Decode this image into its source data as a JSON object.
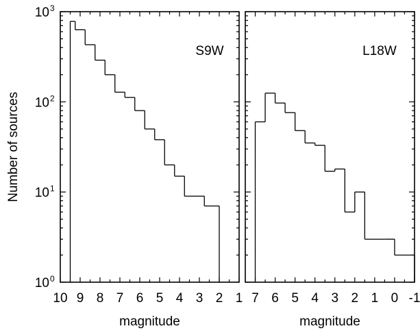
{
  "chart_data": [
    {
      "type": "histogram-step",
      "panel_label": "S9W",
      "xlabel": "magnitude",
      "ylabel": "Number of sources",
      "log_y": true,
      "xlim": [
        10,
        1
      ],
      "ylim": [
        1,
        1000
      ],
      "x_ticks": [
        "10",
        "9",
        "8",
        "7",
        "6",
        "5",
        "4",
        "3",
        "2",
        "1"
      ],
      "x_tick_values": [
        10,
        9,
        8,
        7,
        6,
        5,
        4,
        3,
        2,
        1
      ],
      "y_tick_values": [
        1,
        10,
        100,
        1000
      ],
      "y_tick_labels": [
        {
          "base": "10",
          "exp": "0"
        },
        {
          "base": "10",
          "exp": "1"
        },
        {
          "base": "10",
          "exp": "2"
        },
        {
          "base": "10",
          "exp": "3"
        }
      ],
      "bin_edges": [
        9.5,
        9.25,
        8.75,
        8.25,
        7.75,
        7.25,
        6.75,
        6.25,
        5.75,
        5.25,
        4.75,
        4.25,
        3.75,
        3.25,
        2.75,
        2.25,
        2.0
      ],
      "counts": [
        780,
        630,
        430,
        290,
        200,
        128,
        112,
        80,
        50,
        38,
        20,
        15,
        9,
        9,
        7,
        7
      ]
    },
    {
      "type": "histogram-step",
      "panel_label": "L18W",
      "xlabel": "magnitude",
      "ylabel": "",
      "log_y": true,
      "xlim": [
        7.5,
        -1
      ],
      "ylim": [
        1,
        1000
      ],
      "x_ticks": [
        "7",
        "6",
        "5",
        "4",
        "3",
        "2",
        "1",
        "0",
        "-1"
      ],
      "x_tick_values": [
        7,
        6,
        5,
        4,
        3,
        2,
        1,
        0,
        -1
      ],
      "y_tick_values": [
        1,
        10,
        100,
        1000
      ],
      "bin_edges": [
        7.0,
        6.5,
        6.0,
        5.5,
        5.0,
        4.5,
        4.0,
        3.5,
        3.0,
        2.5,
        2.0,
        1.5,
        0.5,
        0.0,
        -1.0
      ],
      "counts": [
        60,
        125,
        97,
        76,
        48,
        35,
        33,
        17,
        18,
        6,
        10,
        3,
        3,
        2
      ]
    }
  ]
}
